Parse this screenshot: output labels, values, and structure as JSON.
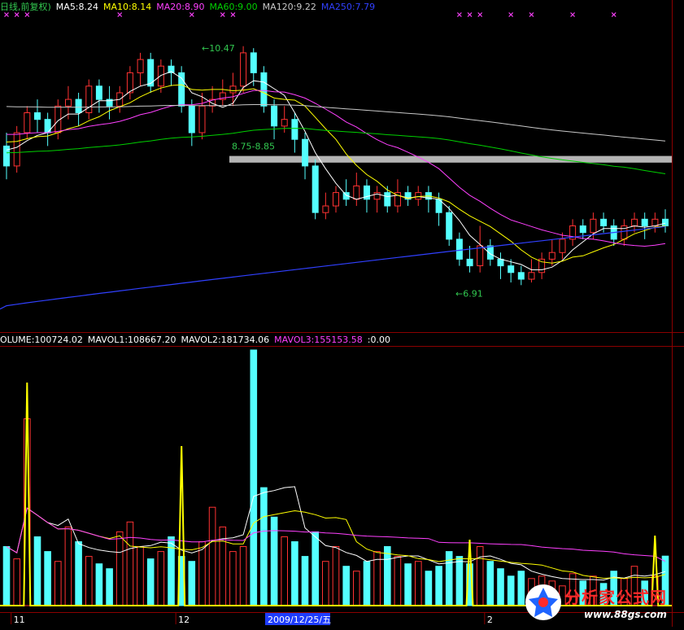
{
  "price_legend": [
    {
      "text": "日线,前复权)",
      "color": "#32c850"
    },
    {
      "text": "MA5:8.24",
      "color": "#ffffff"
    },
    {
      "text": "MA10:8.14",
      "color": "#ffff00"
    },
    {
      "text": "MA20:8.90",
      "color": "#ff40ff"
    },
    {
      "text": "MA60:9.00",
      "color": "#00d000"
    },
    {
      "text": "MA120:9.22",
      "color": "#c8c8c8"
    },
    {
      "text": "MA250:7.79",
      "color": "#3040ff"
    }
  ],
  "volume_legend": [
    {
      "text": "OLUME:100724.02",
      "color": "#ffffff"
    },
    {
      "text": "MAVOL1:108667.20",
      "color": "#ffffff"
    },
    {
      "text": "MAVOL2:181734.06",
      "color": "#ffffff"
    },
    {
      "text": "MAVOL3:155153.58",
      "color": "#ff40ff"
    },
    {
      "text": ":0.00",
      "color": "#ffffff"
    }
  ],
  "date_axis": {
    "labels": [
      {
        "text": "11",
        "boxed": false
      },
      {
        "text": "12",
        "boxed": false
      },
      {
        "text": "2009/12/25/五",
        "boxed": true
      },
      {
        "text": "2",
        "boxed": false
      }
    ]
  },
  "annotations": {
    "high": "10.47",
    "low": "6.91",
    "level": "8.75-8.85"
  },
  "watermark": {
    "title": "分析家公式网",
    "url": "www.88gs.com"
  },
  "chart_data": [
    {
      "type": "candlestick",
      "title": "",
      "ylim": [
        6.4,
        10.9
      ],
      "y_scale": "linear",
      "grid": false,
      "series_names": [
        "MA5",
        "MA10",
        "MA20",
        "MA60",
        "MA120",
        "MA250"
      ],
      "ma_latest": {
        "MA5": 8.24,
        "MA10": 8.14,
        "MA20": 8.9,
        "MA60": 9.0,
        "MA120": 9.22,
        "MA250": 7.79
      },
      "high_label": 10.47,
      "low_label": 6.91,
      "resistance_band": [
        8.75,
        8.85
      ],
      "candles": [
        [
          9.0,
          8.7,
          9.2,
          8.5
        ],
        [
          8.7,
          9.2,
          9.3,
          8.6
        ],
        [
          9.2,
          9.5,
          9.6,
          9.1
        ],
        [
          9.5,
          9.4,
          9.7,
          9.2
        ],
        [
          9.4,
          9.2,
          9.5,
          9.0
        ],
        [
          9.2,
          9.6,
          9.7,
          9.1
        ],
        [
          9.6,
          9.7,
          9.9,
          9.4
        ],
        [
          9.7,
          9.5,
          9.8,
          9.3
        ],
        [
          9.5,
          9.9,
          10.0,
          9.4
        ],
        [
          9.9,
          9.7,
          10.0,
          9.5
        ],
        [
          9.7,
          9.6,
          9.9,
          9.4
        ],
        [
          9.6,
          9.8,
          9.9,
          9.5
        ],
        [
          9.8,
          10.1,
          10.2,
          9.7
        ],
        [
          10.1,
          10.3,
          10.4,
          9.9
        ],
        [
          10.3,
          9.9,
          10.4,
          9.8
        ],
        [
          9.9,
          10.2,
          10.3,
          9.8
        ],
        [
          10.2,
          10.1,
          10.3,
          9.9
        ],
        [
          10.1,
          9.6,
          10.2,
          9.5
        ],
        [
          9.6,
          9.2,
          9.7,
          9.0
        ],
        [
          9.2,
          9.6,
          9.8,
          9.1
        ],
        [
          9.6,
          9.7,
          9.9,
          9.5
        ],
        [
          9.7,
          9.8,
          10.0,
          9.6
        ],
        [
          9.8,
          9.9,
          10.1,
          9.6
        ],
        [
          9.9,
          10.4,
          10.5,
          9.8
        ],
        [
          10.4,
          10.1,
          10.47,
          9.9
        ],
        [
          10.1,
          9.6,
          10.2,
          9.5
        ],
        [
          9.6,
          9.3,
          9.7,
          9.1
        ],
        [
          9.3,
          9.4,
          9.6,
          9.2
        ],
        [
          9.4,
          9.1,
          9.5,
          8.9
        ],
        [
          9.1,
          8.7,
          9.2,
          8.5
        ],
        [
          8.7,
          8.0,
          8.8,
          7.9
        ],
        [
          8.0,
          8.1,
          8.3,
          7.9
        ],
        [
          8.1,
          8.3,
          8.4,
          8.0
        ],
        [
          8.3,
          8.2,
          8.5,
          8.1
        ],
        [
          8.2,
          8.4,
          8.6,
          8.1
        ],
        [
          8.4,
          8.2,
          8.5,
          8.0
        ],
        [
          8.2,
          8.3,
          8.4,
          8.0
        ],
        [
          8.3,
          8.1,
          8.4,
          8.0
        ],
        [
          8.1,
          8.3,
          8.5,
          8.0
        ],
        [
          8.3,
          8.2,
          8.4,
          8.1
        ],
        [
          8.2,
          8.3,
          8.4,
          8.1
        ],
        [
          8.3,
          8.2,
          8.4,
          8.0
        ],
        [
          8.2,
          8.0,
          8.3,
          7.8
        ],
        [
          8.0,
          7.6,
          8.1,
          7.5
        ],
        [
          7.6,
          7.3,
          7.7,
          7.2
        ],
        [
          7.3,
          7.2,
          7.5,
          7.1
        ],
        [
          7.2,
          7.5,
          7.8,
          7.1
        ],
        [
          7.5,
          7.3,
          7.6,
          7.2
        ],
        [
          7.3,
          7.2,
          7.4,
          7.0
        ],
        [
          7.2,
          7.1,
          7.3,
          6.95
        ],
        [
          7.1,
          7.0,
          7.2,
          6.91
        ],
        [
          7.0,
          7.1,
          7.3,
          6.95
        ],
        [
          7.1,
          7.3,
          7.4,
          7.0
        ],
        [
          7.3,
          7.4,
          7.6,
          7.2
        ],
        [
          7.4,
          7.6,
          7.7,
          7.3
        ],
        [
          7.6,
          7.8,
          7.9,
          7.5
        ],
        [
          7.8,
          7.7,
          7.9,
          7.6
        ],
        [
          7.7,
          7.9,
          8.0,
          7.6
        ],
        [
          7.9,
          7.8,
          8.0,
          7.7
        ],
        [
          7.8,
          7.6,
          7.9,
          7.5
        ],
        [
          7.6,
          7.8,
          7.9,
          7.5
        ],
        [
          7.8,
          7.9,
          8.0,
          7.7
        ],
        [
          7.9,
          7.8,
          8.0,
          7.6
        ],
        [
          7.8,
          7.9,
          8.0,
          7.7
        ],
        [
          7.9,
          7.8,
          8.05,
          7.7
        ]
      ]
    },
    {
      "type": "bar",
      "title": "",
      "ylim": [
        0,
        520000
      ],
      "series_names": [
        "VOLUME",
        "MAVOL1",
        "MAVOL2",
        "MAVOL3"
      ],
      "volume_latest": 100724.02,
      "mavol_latest": {
        "MAVOL1": 108667.2,
        "MAVOL2": 181734.06,
        "MAVOL3": 155153.58
      },
      "volume": [
        120000,
        95000,
        380000,
        140000,
        110000,
        90000,
        160000,
        130000,
        100000,
        85000,
        75000,
        150000,
        170000,
        120000,
        95000,
        110000,
        140000,
        100000,
        90000,
        130000,
        200000,
        160000,
        110000,
        120000,
        520000,
        240000,
        180000,
        140000,
        130000,
        100000,
        150000,
        90000,
        120000,
        80000,
        70000,
        90000,
        110000,
        120000,
        100000,
        85000,
        90000,
        70000,
        80000,
        110000,
        100000,
        85000,
        120000,
        90000,
        75000,
        60000,
        70000,
        55000,
        60000,
        50000,
        40000,
        65000,
        50000,
        60000,
        45000,
        70000,
        55000,
        80000,
        50000,
        60000,
        100724
      ]
    }
  ]
}
